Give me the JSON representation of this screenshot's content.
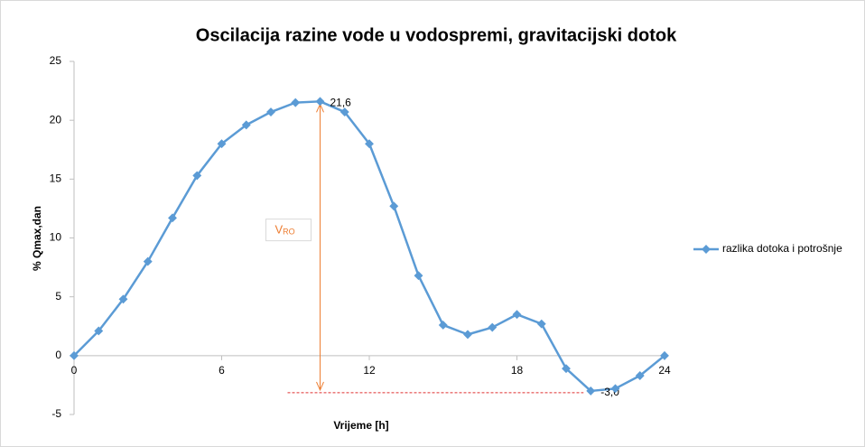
{
  "chart_data": {
    "type": "line",
    "title": "Oscilacija razine vode u vodospremi, gravitacijski dotok",
    "x_label": "Vrijeme [h]",
    "y_label": "% Qmax,dan",
    "x": [
      0,
      1,
      2,
      3,
      4,
      5,
      6,
      7,
      8,
      9,
      10,
      11,
      12,
      13,
      14,
      15,
      16,
      17,
      18,
      19,
      20,
      21,
      22,
      23,
      24
    ],
    "series": [
      {
        "name": "razlika dotoka i potrošnje",
        "color": "#5b9bd5",
        "values": [
          0,
          2.1,
          4.8,
          8.0,
          11.7,
          15.3,
          18.0,
          19.6,
          20.7,
          21.5,
          21.6,
          20.7,
          18.0,
          12.7,
          6.8,
          2.6,
          1.8,
          2.4,
          3.5,
          2.7,
          -1.1,
          -3.0,
          -2.8,
          -1.7,
          0
        ],
        "value_labels": [
          null,
          null,
          null,
          null,
          null,
          null,
          null,
          null,
          null,
          null,
          "21,6",
          null,
          null,
          null,
          null,
          null,
          null,
          null,
          null,
          null,
          null,
          "-3,0",
          null,
          null,
          null
        ]
      }
    ],
    "annotation": {
      "text": "V",
      "sub": "RO"
    },
    "xlim": [
      0,
      24
    ],
    "xticks": [
      0,
      6,
      12,
      18,
      24
    ],
    "ylim": [
      -5,
      25
    ],
    "yticks": [
      -5,
      0,
      5,
      10,
      15,
      20,
      25
    ],
    "legend": "right"
  }
}
